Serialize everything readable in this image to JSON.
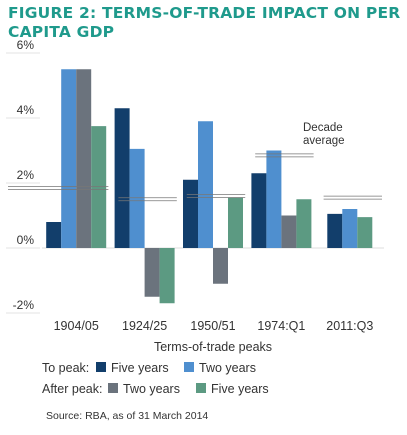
{
  "header": {
    "title": "FIGURE 2: TERMS-OF-TRADE IMPACT ON PER CAPITA GDP"
  },
  "chart_data": {
    "type": "bar",
    "title": "FIGURE 2: TERMS-OF-TRADE IMPACT ON PER CAPITA GDP",
    "xlabel": "Terms-of-trade peaks",
    "ylabel": "",
    "categories": [
      "1904/05",
      "1924/25",
      "1950/51",
      "1974:Q1",
      "2011:Q3"
    ],
    "ylim": [
      -2,
      6
    ],
    "yticks": [
      -2,
      0,
      2,
      4,
      6
    ],
    "ytick_labels": [
      "-2%",
      "0%",
      "2%",
      "4%",
      "6%"
    ],
    "grid": false,
    "series": [
      {
        "name": "Five years",
        "group": "To peak",
        "color": "#123e6b",
        "values": [
          0.8,
          4.3,
          2.1,
          2.3,
          1.05
        ]
      },
      {
        "name": "Two years",
        "group": "To peak",
        "color": "#4f8fcf",
        "values": [
          5.5,
          3.05,
          3.9,
          3.0,
          1.2
        ]
      },
      {
        "name": "Two years",
        "group": "After peak",
        "color": "#6b737d",
        "values": [
          5.5,
          -1.5,
          -1.1,
          1.0,
          null
        ]
      },
      {
        "name": "Five years",
        "group": "After peak",
        "color": "#5c9a82",
        "values": [
          3.75,
          -1.7,
          1.55,
          1.5,
          0.95
        ]
      }
    ],
    "decade_average": {
      "label": [
        "Decade",
        "average"
      ],
      "values": [
        1.85,
        1.5,
        1.6,
        2.85,
        1.55
      ]
    },
    "legend": {
      "placement": "bottom",
      "rows": [
        {
          "label": "To peak:",
          "items": [
            {
              "label": "Five years",
              "color": "#123e6b"
            },
            {
              "label": "Two years",
              "color": "#4f8fcf"
            }
          ]
        },
        {
          "label": "After peak:",
          "items": [
            {
              "label": "Two years",
              "color": "#6b737d"
            },
            {
              "label": "Five years",
              "color": "#5c9a82"
            }
          ]
        }
      ]
    },
    "source": "Source: RBA, as of 31 March 2014"
  }
}
